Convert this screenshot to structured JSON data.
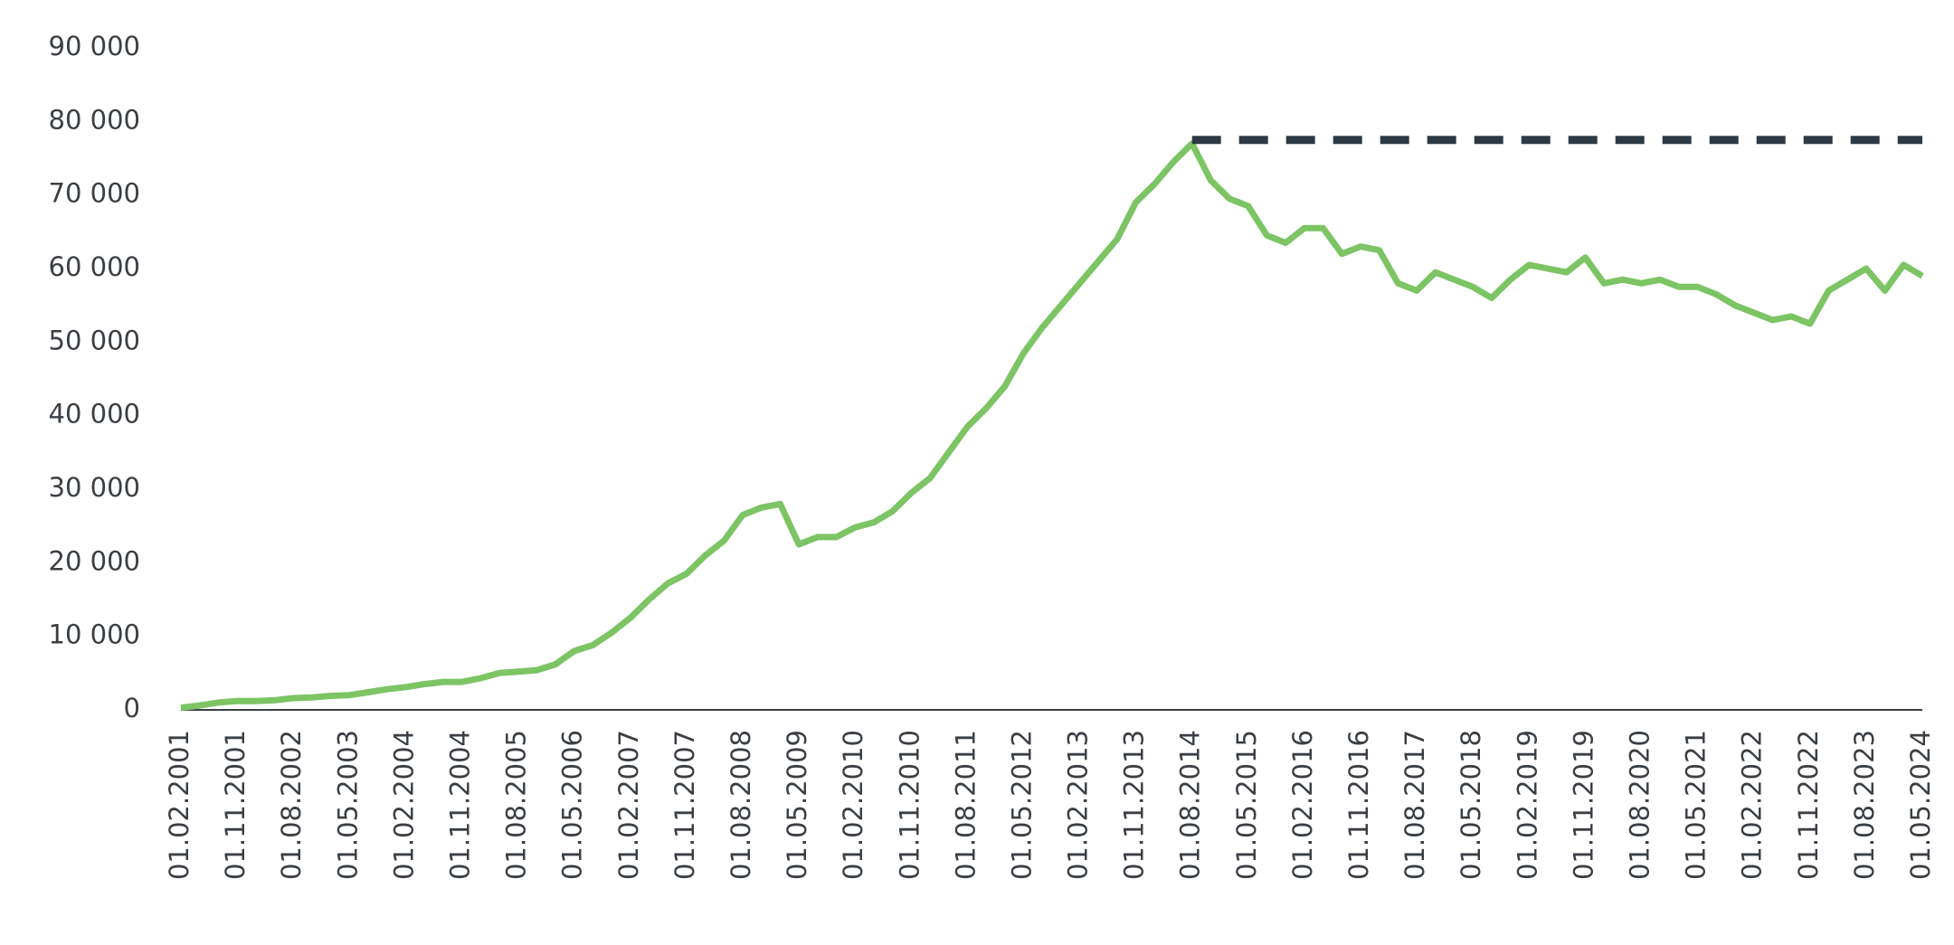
{
  "chart_data": {
    "type": "line",
    "categories": [
      "01.02.2001",
      null,
      null,
      "01.11.2001",
      null,
      null,
      "01.08.2002",
      null,
      null,
      "01.05.2003",
      null,
      null,
      "01.02.2004",
      null,
      null,
      "01.11.2004",
      null,
      null,
      "01.08.2005",
      null,
      null,
      "01.05.2006",
      null,
      null,
      "01.02.2007",
      null,
      null,
      "01.11.2007",
      null,
      null,
      "01.08.2008",
      null,
      null,
      "01.05.2009",
      null,
      null,
      "01.02.2010",
      null,
      null,
      "01.11.2010",
      null,
      null,
      "01.08.2011",
      null,
      null,
      "01.05.2012",
      null,
      null,
      "01.02.2013",
      null,
      null,
      "01.11.2013",
      null,
      null,
      "01.08.2014",
      null,
      null,
      "01.05.2015",
      null,
      null,
      "01.02.2016",
      null,
      null,
      "01.11.2016",
      null,
      null,
      "01.08.2017",
      null,
      null,
      "01.05.2018",
      null,
      null,
      "01.02.2019",
      null,
      null,
      "01.11.2019",
      null,
      null,
      "01.08.2020",
      null,
      null,
      "01.05.2021",
      null,
      null,
      "01.02.2022",
      null,
      null,
      "01.11.2022",
      null,
      null,
      "01.08.2023",
      null,
      null,
      "01.05.2024"
    ],
    "series": [
      {
        "color": "#7cc464",
        "dashed": false,
        "values": [
          300,
          600,
          1000,
          1200,
          1200,
          1300,
          1600,
          1700,
          1900,
          2000,
          2400,
          2800,
          3100,
          3500,
          3800,
          3800,
          4300,
          5000,
          5200,
          5400,
          6200,
          8000,
          8800,
          10500,
          12500,
          15000,
          17200,
          18500,
          21000,
          23000,
          26500,
          27500,
          28000,
          22500,
          23500,
          23500,
          24800,
          25500,
          27000,
          29500,
          31500,
          35000,
          38500,
          41000,
          44000,
          48500,
          52000,
          55000,
          58000,
          61000,
          64000,
          69000,
          71500,
          74500,
          77000,
          72000,
          69500,
          68500,
          64500,
          63500,
          65500,
          65500,
          62000,
          63000,
          62500,
          58000,
          57000,
          59500,
          58500,
          57500,
          56000,
          58500,
          60500,
          60000,
          59500,
          61500,
          58000,
          58500,
          58000,
          58500,
          57500,
          57500,
          56500,
          55000,
          54000,
          53000,
          53500,
          52500,
          57000,
          58500,
          60000,
          57000,
          60500,
          59000
        ]
      },
      {
        "color": "#2d3a44",
        "dashed": true,
        "values": [
          null,
          null,
          null,
          null,
          null,
          null,
          null,
          null,
          null,
          null,
          null,
          null,
          null,
          null,
          null,
          null,
          null,
          null,
          null,
          null,
          null,
          null,
          null,
          null,
          null,
          null,
          null,
          null,
          null,
          null,
          null,
          null,
          null,
          null,
          null,
          null,
          null,
          null,
          null,
          null,
          null,
          null,
          null,
          null,
          null,
          null,
          null,
          null,
          null,
          null,
          null,
          null,
          null,
          null,
          77500,
          77500,
          77500,
          77500,
          77500,
          77500,
          77500,
          77500,
          77500,
          77500,
          77500,
          77500,
          77500,
          77500,
          77500,
          77500,
          77500,
          77500,
          77500,
          77500,
          77500,
          77500,
          77500,
          77500,
          77500,
          77500,
          77500,
          77500,
          77500,
          77500,
          77500,
          77500,
          77500,
          77500,
          77500,
          77500,
          77500,
          77500,
          77500,
          77500
        ]
      }
    ],
    "ylim": [
      0,
      90000
    ],
    "yticks": [
      0,
      {
        "value": 10000,
        "label": "10 000"
      },
      {
        "value": 20000,
        "label": "20 000"
      },
      {
        "value": 30000,
        "label": "30 000"
      },
      {
        "value": 40000,
        "label": "40 000"
      },
      {
        "value": 50000,
        "label": "50 000"
      },
      {
        "value": 60000,
        "label": "60 000"
      },
      {
        "value": 70000,
        "label": "70 000"
      },
      {
        "value": 80000,
        "label": "80 000"
      },
      {
        "value": 90000,
        "label": "90 000"
      }
    ],
    "grid": false
  }
}
